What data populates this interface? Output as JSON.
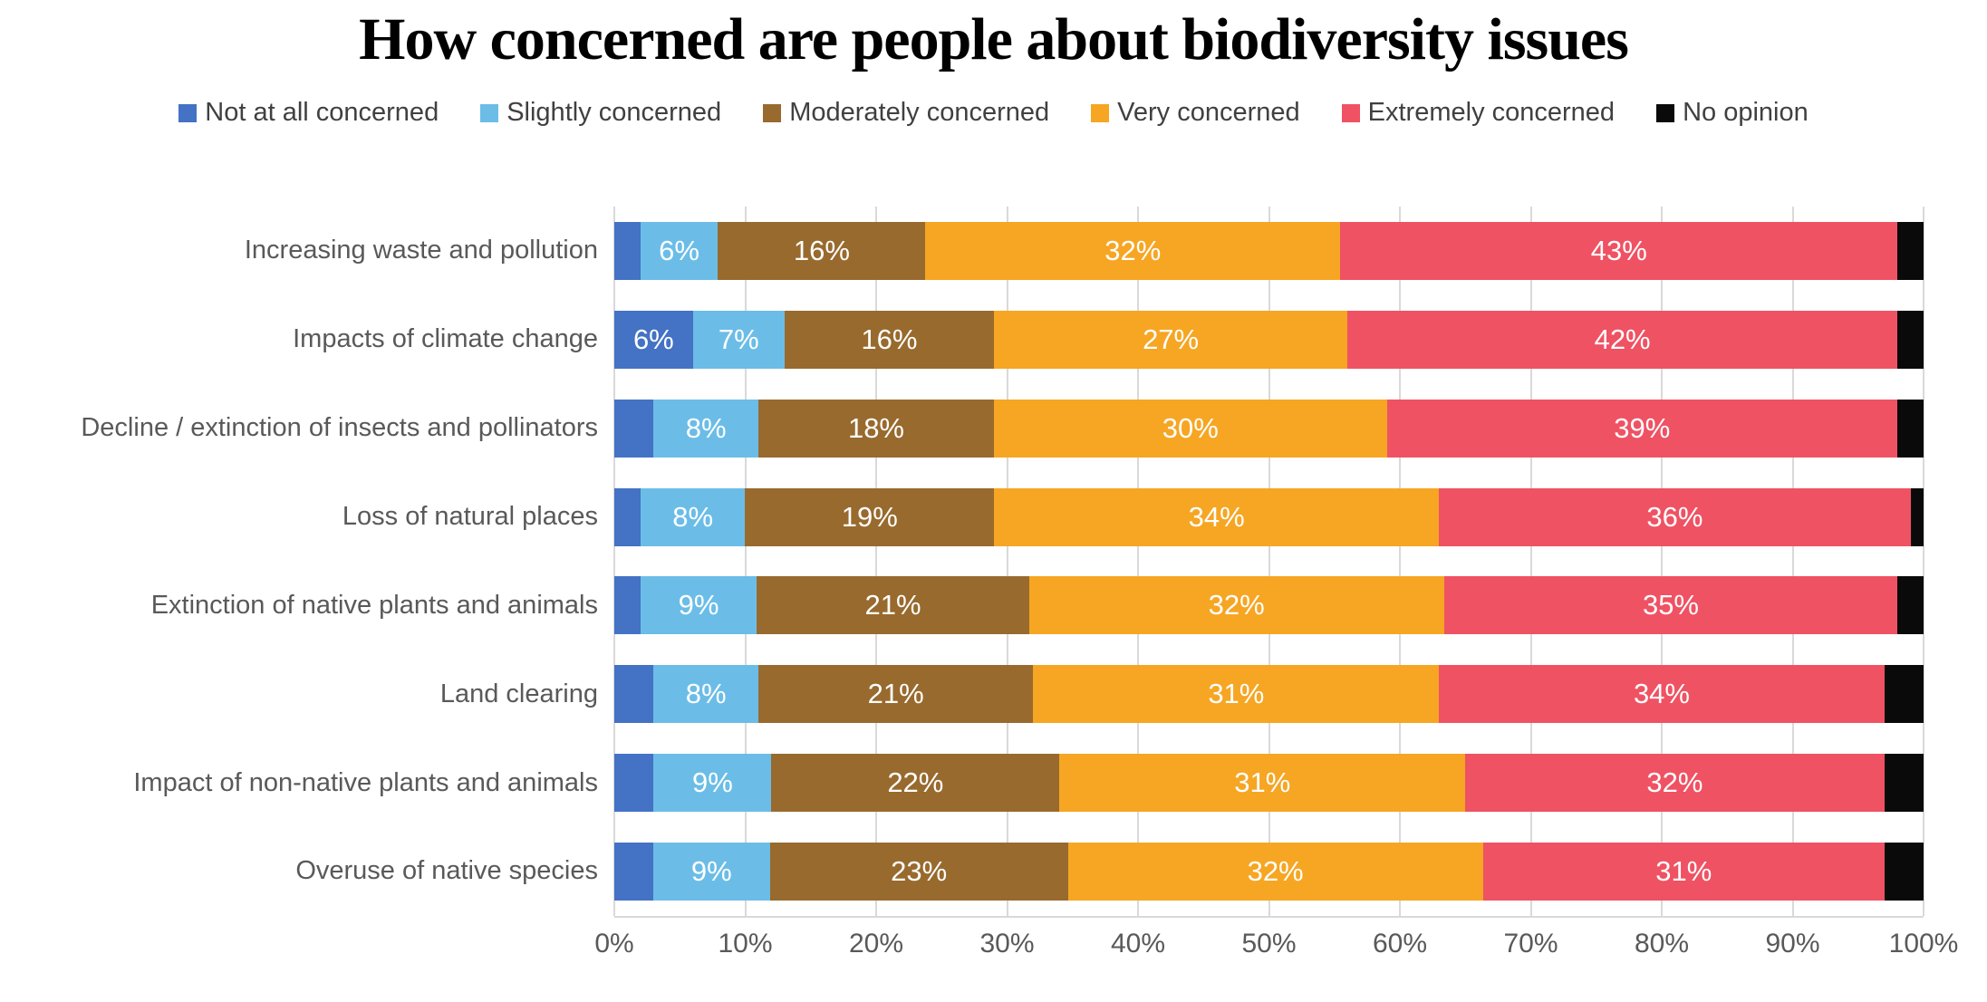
{
  "chart_data": {
    "type": "bar",
    "stacked": true,
    "orientation": "horizontal",
    "title": "How concerned are people about biodiversity issues",
    "legend_position": "top",
    "grid": true,
    "gridline_color": "#d9d9d9",
    "xlim": [
      0,
      100
    ],
    "x_ticks": [
      "0%",
      "10%",
      "20%",
      "30%",
      "40%",
      "50%",
      "60%",
      "70%",
      "80%",
      "90%",
      "100%"
    ],
    "series": [
      {
        "name": "Not at all concerned",
        "color": "#4472c4"
      },
      {
        "name": "Slightly concerned",
        "color": "#6bbde7"
      },
      {
        "name": "Moderately concerned",
        "color": "#986a2e"
      },
      {
        "name": "Very concerned",
        "color": "#f6a623"
      },
      {
        "name": "Extremely concerned",
        "color": "#ef5263"
      },
      {
        "name": "No opinion",
        "color": "#0a0a0a"
      }
    ],
    "categories": [
      "Increasing waste and pollution",
      "Impacts of climate change",
      "Decline / extinction of insects and pollinators",
      "Loss of natural places",
      "Extinction of native plants and animals",
      "Land clearing",
      "Impact of non-native plants and animals",
      "Overuse of native species"
    ],
    "rows": [
      {
        "category": "Increasing waste and pollution",
        "values": [
          2,
          6,
          16,
          32,
          43,
          2
        ],
        "labels": [
          "",
          "6%",
          "16%",
          "32%",
          "43%",
          ""
        ]
      },
      {
        "category": "Impacts of climate change",
        "values": [
          6,
          7,
          16,
          27,
          42,
          2
        ],
        "labels": [
          "6%",
          "7%",
          "16%",
          "27%",
          "42%",
          ""
        ]
      },
      {
        "category": "Decline / extinction of insects and pollinators",
        "values": [
          3,
          8,
          18,
          30,
          39,
          2
        ],
        "labels": [
          "",
          "8%",
          "18%",
          "30%",
          "39%",
          ""
        ]
      },
      {
        "category": "Loss of natural places",
        "values": [
          2,
          8,
          19,
          34,
          36,
          1
        ],
        "labels": [
          "",
          "8%",
          "19%",
          "34%",
          "36%",
          ""
        ]
      },
      {
        "category": "Extinction of native plants and animals",
        "values": [
          2,
          9,
          21,
          32,
          35,
          2
        ],
        "labels": [
          "",
          "9%",
          "21%",
          "32%",
          "35%",
          ""
        ]
      },
      {
        "category": "Land clearing",
        "values": [
          3,
          8,
          21,
          31,
          34,
          3
        ],
        "labels": [
          "",
          "8%",
          "21%",
          "31%",
          "34%",
          ""
        ]
      },
      {
        "category": "Impact of non-native plants and animals",
        "values": [
          3,
          9,
          22,
          31,
          32,
          3
        ],
        "labels": [
          "",
          "9%",
          "22%",
          "31%",
          "32%",
          ""
        ]
      },
      {
        "category": "Overuse of native species",
        "values": [
          3,
          9,
          23,
          32,
          31,
          3
        ],
        "labels": [
          "",
          "9%",
          "23%",
          "32%",
          "31%",
          ""
        ]
      }
    ],
    "text_colors": {
      "title": "#000000",
      "legend": "#404040",
      "axis": "#595959",
      "data_label": "#ffffff"
    }
  }
}
